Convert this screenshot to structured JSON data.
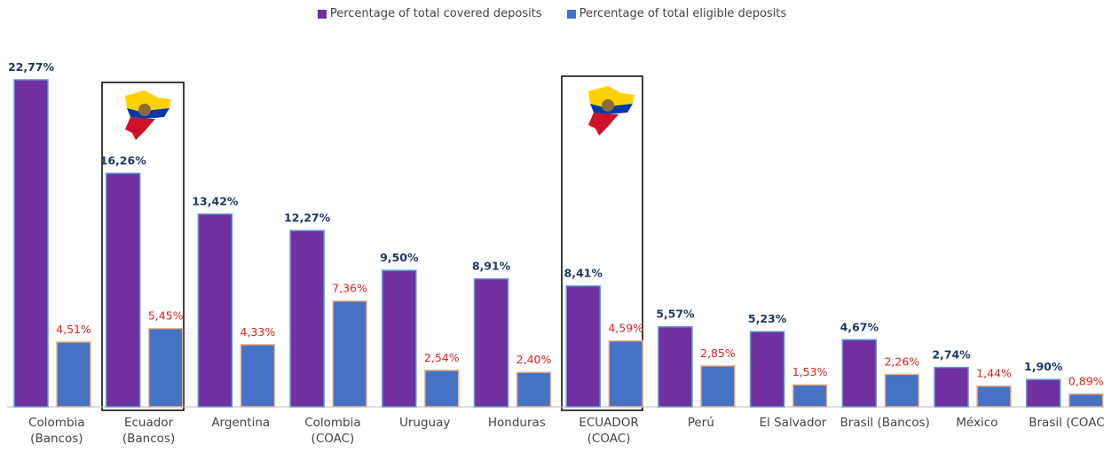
{
  "chart_data": {
    "type": "bar",
    "categories": [
      "Colombia\n(Bancos)",
      "Ecuador\n(Bancos)",
      "Argentina",
      "Colombia\n(COAC)",
      "Uruguay",
      "Honduras",
      "ECUADOR\n(COAC)",
      "Perú",
      "El Salvador",
      "Brasil (Bancos)",
      "México",
      "Brasil (COAC)"
    ],
    "series": [
      {
        "name": "Percentage of total covered deposits",
        "color": "#7030a0",
        "label_color": "#1f3864",
        "values": [
          22.77,
          16.26,
          13.42,
          12.27,
          9.5,
          8.91,
          8.41,
          5.57,
          5.23,
          4.67,
          2.74,
          1.9
        ],
        "value_labels": [
          "22,77%",
          "16,26%",
          "13,42%",
          "12,27%",
          "9,50%",
          "8,91%",
          "8,41%",
          "5,57%",
          "5,23%",
          "4,67%",
          "2,74%",
          "1,90%"
        ]
      },
      {
        "name": "Percentage of total eligible deposits",
        "color": "#4472c4",
        "label_color": "#e02020",
        "values": [
          4.51,
          5.45,
          4.33,
          7.36,
          2.54,
          2.4,
          4.59,
          2.85,
          1.53,
          2.26,
          1.44,
          0.89
        ],
        "value_labels": [
          "4,51%",
          "5,45%",
          "4,33%",
          "7,36%",
          "2,54%",
          "2,40%",
          "4,59%",
          "2,85%",
          "1,53%",
          "2,26%",
          "1,44%",
          "0,89%"
        ]
      }
    ],
    "legend": "top"
  }
}
